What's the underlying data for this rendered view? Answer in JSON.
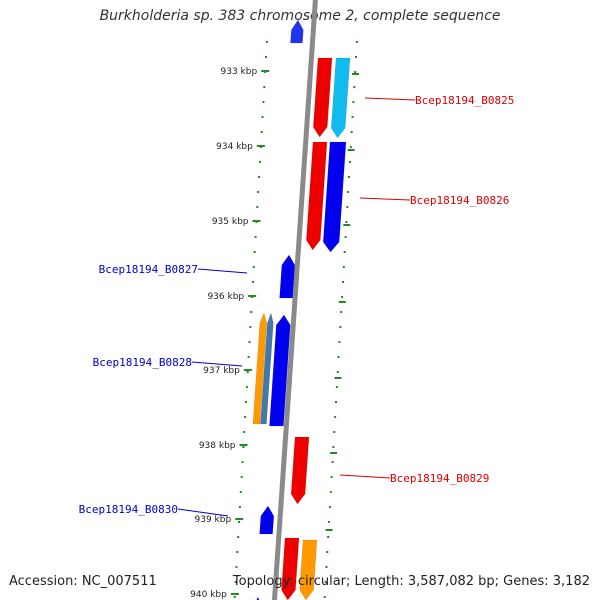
{
  "title": "Burkholderia sp. 383 chromosome 2, complete sequence",
  "accession": "Accession: NC_007511",
  "summary": "Topology: circular; Length: 3,587,082 bp; Genes: 3,182",
  "colors": {
    "backbone": "#8a8a8a",
    "ticks": "#228b22",
    "forward_label": "#dd0000",
    "reverse_label": "#0000cc",
    "red": "#ee0000",
    "blue": "#0000ee",
    "cyan": "#11bbee",
    "orange": "#ff9900",
    "steelblue": "#4477aa"
  },
  "tick_labels": [
    "933 kbp",
    "934 kbp",
    "935 kbp",
    "936 kbp",
    "937 kbp",
    "938 kbp",
    "939 kbp",
    "940 kbp"
  ],
  "gene_labels": [
    {
      "id": "Bcep18194_B0825",
      "strand": "forward"
    },
    {
      "id": "Bcep18194_B0826",
      "strand": "forward"
    },
    {
      "id": "Bcep18194_B0827",
      "strand": "reverse"
    },
    {
      "id": "Bcep18194_B0828",
      "strand": "reverse"
    },
    {
      "id": "Bcep18194_B0829",
      "strand": "forward"
    },
    {
      "id": "Bcep18194_B0830",
      "strand": "reverse"
    }
  ]
}
